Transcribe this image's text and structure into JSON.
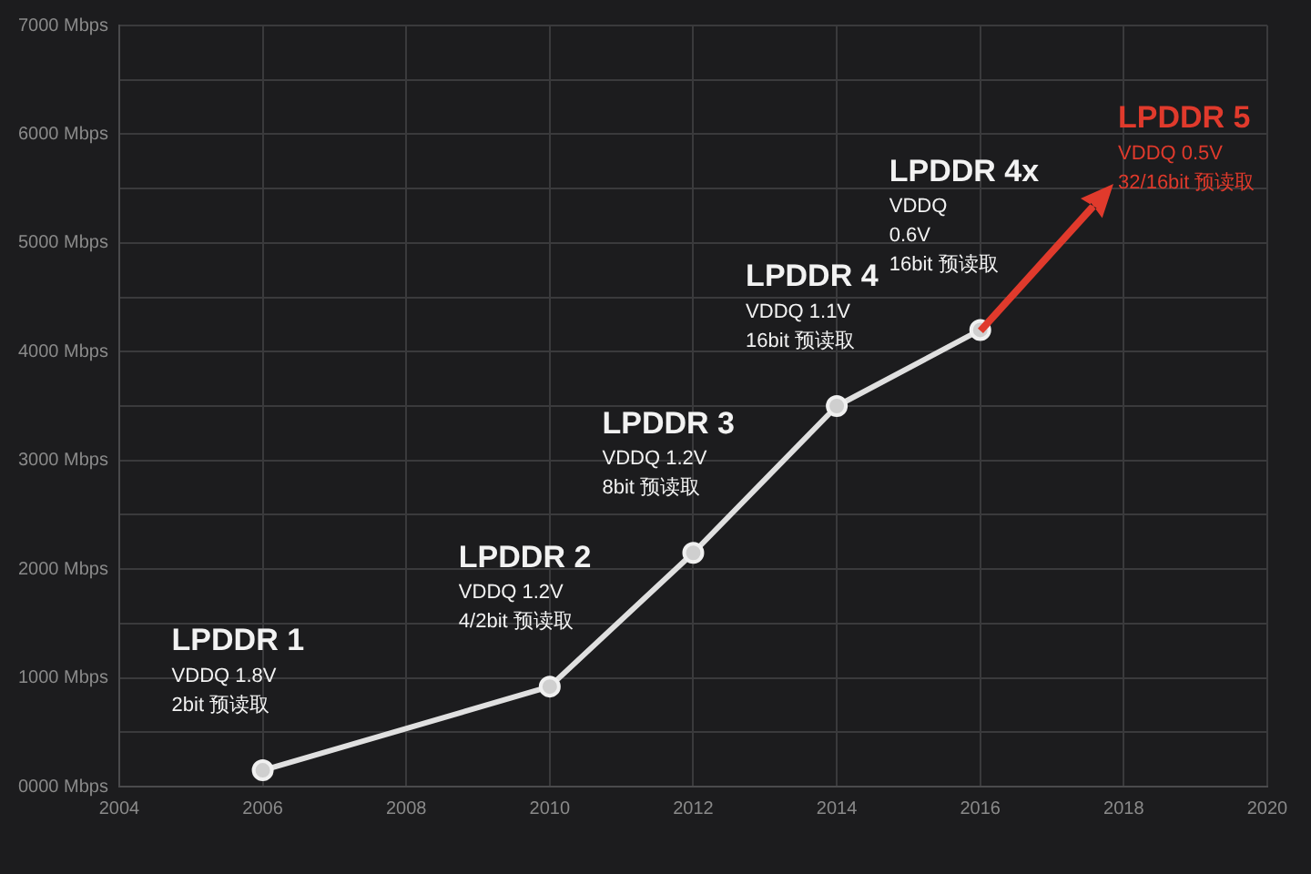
{
  "chart_data": {
    "type": "line",
    "x": [
      2006,
      2010,
      2012,
      2014,
      2016
    ],
    "series": [
      {
        "color": "#e0e0e0",
        "values": [
          150,
          920,
          2150,
          3500,
          4200
        ]
      }
    ],
    "xlim": [
      2004,
      2020
    ],
    "xticks": [
      2004,
      2006,
      2008,
      2010,
      2012,
      2014,
      2016,
      2018,
      2020
    ],
    "ylim": [
      0,
      7000
    ],
    "yticks": [
      {
        "value": 0,
        "label": "0000 Mbps"
      },
      {
        "value": 500,
        "label": null
      },
      {
        "value": 1000,
        "label": "1000 Mbps"
      },
      {
        "value": 1500,
        "label": null
      },
      {
        "value": 2000,
        "label": "2000 Mbps"
      },
      {
        "value": 2500,
        "label": null
      },
      {
        "value": 3000,
        "label": "3000 Mbps"
      },
      {
        "value": 3500,
        "label": null
      },
      {
        "value": 4000,
        "label": "4000 Mbps"
      },
      {
        "value": 4500,
        "label": null
      },
      {
        "value": 5000,
        "label": "5000 Mbps"
      },
      {
        "value": 5500,
        "label": null
      },
      {
        "value": 6000,
        "label": "6000 Mbps"
      },
      {
        "value": 6500,
        "label": null
      },
      {
        "value": 7000,
        "label": "7000 Mbps"
      }
    ],
    "annotations": [
      {
        "text": "LPDDR 1\nVDDQ 1.8V\n2bit 预读取",
        "x": 2006,
        "y": 150
      },
      {
        "text": "LPDDR 2\nVDDQ 1.2V\n4/2bit 预读取",
        "x": 2010,
        "y": 920
      },
      {
        "text": "LPDDR 3\nVDDQ 1.2V\n8bit 预读取",
        "x": 2012,
        "y": 2150
      },
      {
        "text": "LPDDR 4\nVDDQ 1.1V\n16bit 预读取",
        "x": 2014,
        "y": 3500
      },
      {
        "text": "LPDDR 4x\nVDDQ\n0.6V\n16bit 预读取",
        "x": 2016,
        "y": 4200
      },
      "LPDDR 5\nVDDQ 0.5V\n32/16bit 预读取"
    ],
    "grid": true,
    "legend": false,
    "marker": "circle",
    "line_style": "solid"
  }
}
